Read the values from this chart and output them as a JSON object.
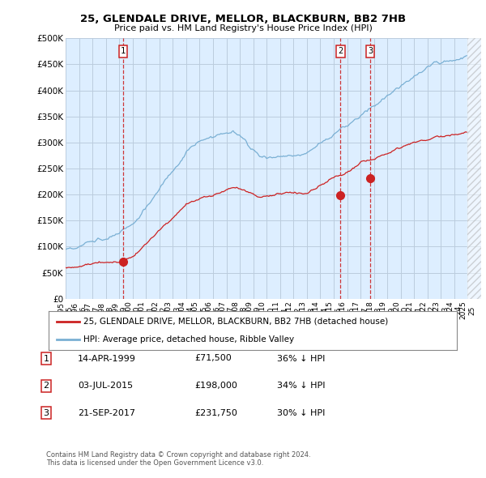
{
  "title": "25, GLENDALE DRIVE, MELLOR, BLACKBURN, BB2 7HB",
  "subtitle": "Price paid vs. HM Land Registry's House Price Index (HPI)",
  "background_color": "#ffffff",
  "plot_bg_color": "#ddeeff",
  "grid_color": "#bbccdd",
  "hpi_color": "#7ab0d4",
  "price_color": "#cc2222",
  "ylim": [
    0,
    500000
  ],
  "yticks": [
    0,
    50000,
    100000,
    150000,
    200000,
    250000,
    300000,
    350000,
    400000,
    450000,
    500000
  ],
  "ytick_labels": [
    "£0",
    "£50K",
    "£100K",
    "£150K",
    "£200K",
    "£250K",
    "£300K",
    "£350K",
    "£400K",
    "£450K",
    "£500K"
  ],
  "sales": [
    {
      "label": "1",
      "date_str": "14-APR-1999",
      "price": 71500,
      "year": 1999.29
    },
    {
      "label": "2",
      "date_str": "03-JUL-2015",
      "price": 198000,
      "year": 2015.5
    },
    {
      "label": "3",
      "date_str": "21-SEP-2017",
      "price": 231750,
      "year": 2017.72
    }
  ],
  "legend_house_label": "25, GLENDALE DRIVE, MELLOR, BLACKBURN, BB2 7HB (detached house)",
  "legend_hpi_label": "HPI: Average price, detached house, Ribble Valley",
  "table_rows": [
    [
      "1",
      "14-APR-1999",
      "£71,500",
      "36% ↓ HPI"
    ],
    [
      "2",
      "03-JUL-2015",
      "£198,000",
      "34% ↓ HPI"
    ],
    [
      "3",
      "21-SEP-2017",
      "£231,750",
      "30% ↓ HPI"
    ]
  ],
  "footer_line1": "Contains HM Land Registry data © Crown copyright and database right 2024.",
  "footer_line2": "This data is licensed under the Open Government Licence v3.0."
}
